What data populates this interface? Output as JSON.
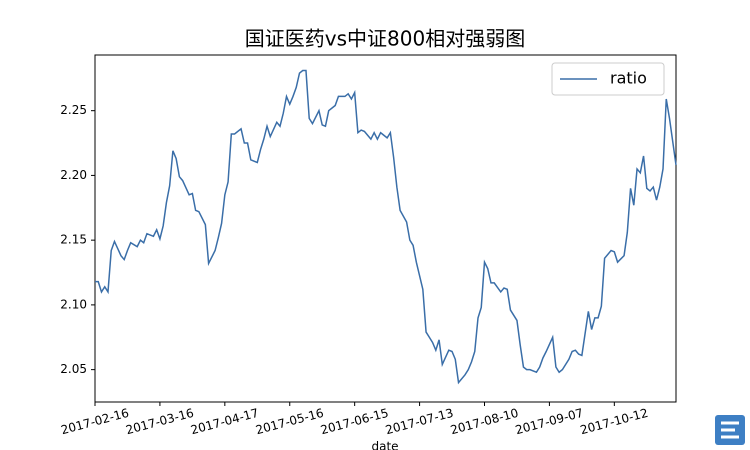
{
  "chart_data": {
    "type": "line",
    "title": "国证医药vs中证800相对强弱图",
    "x_label": "date",
    "x": [
      0,
      1,
      2,
      3,
      4,
      5,
      6,
      8,
      9,
      10,
      11,
      13,
      14,
      15,
      16,
      18,
      19,
      20,
      21,
      22,
      23,
      24,
      25,
      26,
      27,
      29,
      30,
      31,
      32,
      34,
      35,
      37,
      38,
      39,
      40,
      41,
      42,
      43,
      45,
      46,
      47,
      48,
      50,
      51,
      52,
      53,
      54,
      56,
      57,
      58,
      59,
      60,
      61,
      62,
      63,
      64,
      65,
      66,
      67,
      69,
      70,
      71,
      72,
      74,
      75,
      77,
      78,
      79,
      80,
      81,
      82,
      83,
      85,
      86,
      87,
      88,
      90,
      91,
      92,
      93,
      94,
      96,
      97,
      98,
      99,
      101,
      102,
      103,
      104,
      105,
      106,
      107,
      109,
      110,
      111,
      112,
      114,
      115,
      116,
      117,
      118,
      119,
      120,
      121,
      122,
      123,
      125,
      126,
      127,
      128,
      130,
      131,
      132,
      133,
      134,
      136,
      137,
      138,
      139,
      141,
      142,
      143,
      144,
      146,
      147,
      148,
      149,
      150,
      152,
      153,
      154,
      155,
      156,
      157,
      159,
      160,
      161,
      163,
      164,
      165,
      166,
      167,
      168,
      169,
      170,
      171,
      172,
      173,
      174,
      175,
      176,
      177,
      179
    ],
    "series": [
      {
        "name": "ratio",
        "color": "#3a6ea8",
        "values": [
          2.118,
          2.118,
          2.11,
          2.114,
          2.11,
          2.142,
          2.149,
          2.138,
          2.135,
          2.142,
          2.148,
          2.145,
          2.15,
          2.148,
          2.155,
          2.153,
          2.158,
          2.151,
          2.161,
          2.179,
          2.192,
          2.219,
          2.213,
          2.199,
          2.196,
          2.185,
          2.186,
          2.173,
          2.172,
          2.162,
          2.132,
          2.142,
          2.152,
          2.163,
          2.185,
          2.195,
          2.232,
          2.232,
          2.236,
          2.225,
          2.225,
          2.212,
          2.21,
          2.22,
          2.228,
          2.238,
          2.23,
          2.241,
          2.238,
          2.248,
          2.261,
          2.255,
          2.261,
          2.268,
          2.279,
          2.281,
          2.281,
          2.244,
          2.24,
          2.25,
          2.239,
          2.238,
          2.25,
          2.254,
          2.261,
          2.261,
          2.263,
          2.259,
          2.264,
          2.233,
          2.235,
          2.234,
          2.228,
          2.233,
          2.228,
          2.233,
          2.229,
          2.233,
          2.214,
          2.191,
          2.173,
          2.164,
          2.15,
          2.146,
          2.133,
          2.112,
          2.079,
          2.075,
          2.071,
          2.065,
          2.073,
          2.054,
          2.065,
          2.064,
          2.058,
          2.04,
          2.046,
          2.05,
          2.056,
          2.064,
          2.09,
          2.098,
          2.133,
          2.128,
          2.117,
          2.117,
          2.11,
          2.113,
          2.112,
          2.096,
          2.088,
          2.069,
          2.052,
          2.05,
          2.05,
          2.048,
          2.052,
          2.059,
          2.064,
          2.075,
          2.052,
          2.048,
          2.05,
          2.058,
          2.064,
          2.065,
          2.062,
          2.061,
          2.095,
          2.081,
          2.09,
          2.09,
          2.099,
          2.136,
          2.142,
          2.141,
          2.133,
          2.138,
          2.156,
          2.19,
          2.177,
          2.205,
          2.202,
          2.215,
          2.19,
          2.188,
          2.191,
          2.181,
          2.191,
          2.205,
          2.259,
          2.244,
          2.208
        ]
      }
    ],
    "xlim": [
      0,
      179
    ],
    "xticks": [
      {
        "value": 0,
        "label": "2017-02-16"
      },
      {
        "value": 20,
        "label": "2017-03-16"
      },
      {
        "value": 40,
        "label": "2017-04-17"
      },
      {
        "value": 60,
        "label": "2017-05-16"
      },
      {
        "value": 80,
        "label": "2017-06-15"
      },
      {
        "value": 100,
        "label": "2017-07-13"
      },
      {
        "value": 120,
        "label": "2017-08-10"
      },
      {
        "value": 140,
        "label": "2017-09-07"
      },
      {
        "value": 160,
        "label": "2017-10-12"
      }
    ],
    "ylim": [
      2.025,
      2.293
    ],
    "yticks": [
      2.05,
      {
        "value": 2.1,
        "label": "2.10"
      },
      2.15,
      {
        "value": 2.2,
        "label": "2.20"
      },
      2.25
    ],
    "legend": "upper right",
    "grid": false
  }
}
